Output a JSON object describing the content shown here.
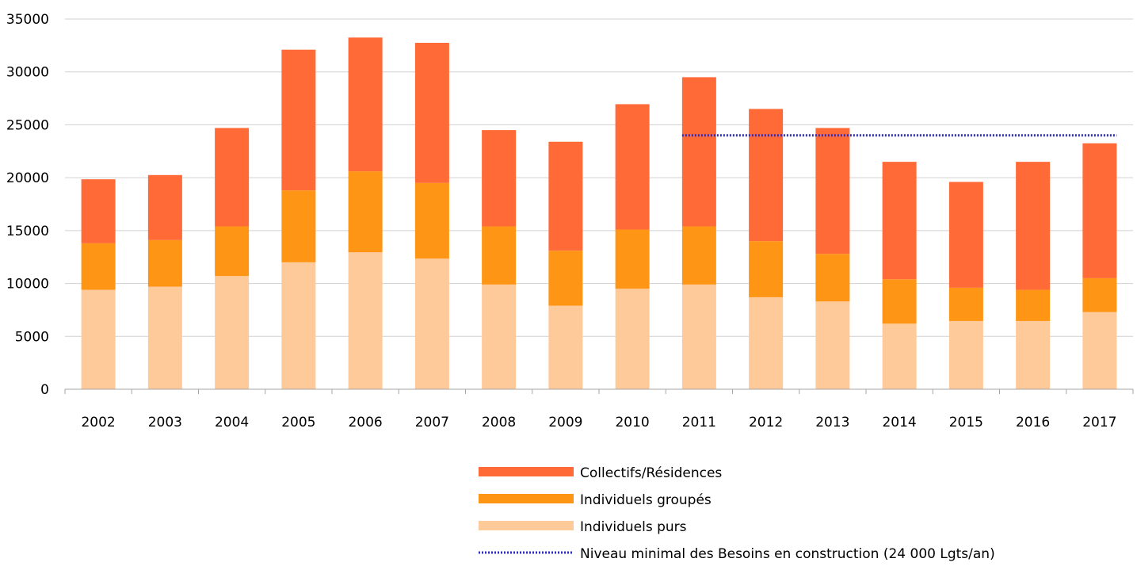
{
  "chart_data": {
    "type": "bar",
    "stacked": true,
    "categories": [
      "2002",
      "2003",
      "2004",
      "2005",
      "2006",
      "2007",
      "2008",
      "2009",
      "2010",
      "2011",
      "2012",
      "2013",
      "2014",
      "2015",
      "2016",
      "2017"
    ],
    "series": [
      {
        "name": "Individuels purs",
        "color": "#FFCA99",
        "values": [
          9400,
          9700,
          10700,
          12000,
          12950,
          12350,
          9900,
          7900,
          9500,
          9900,
          8700,
          8300,
          6200,
          6450,
          6450,
          7300
        ]
      },
      {
        "name": "Individuels groupés",
        "color": "#FF9515",
        "values": [
          4400,
          4400,
          4700,
          6800,
          7650,
          7150,
          5500,
          5200,
          5600,
          5500,
          5300,
          4500,
          4200,
          3150,
          2950,
          3200
        ]
      },
      {
        "name": "Collectifs/Résidences",
        "color": "#FF6A37",
        "values": [
          6050,
          6150,
          9300,
          13300,
          12650,
          13250,
          9100,
          10300,
          11850,
          14100,
          12500,
          11900,
          11100,
          10000,
          12100,
          12750
        ]
      }
    ],
    "reference_line": {
      "name": "Niveau minimal des Besoins en construction (24 000 Lgts/an)",
      "value": 24000,
      "from": "2011",
      "to": "2017",
      "color": "#2C2CC8",
      "style": "dotted"
    },
    "legend_order": [
      "Collectifs/Résidences",
      "Individuels groupés",
      "Individuels purs",
      "Niveau minimal des Besoins en construction (24 000 Lgts/an)"
    ],
    "legend_position": "bottom",
    "ylim": [
      0,
      35000
    ],
    "yticks": [
      0,
      5000,
      10000,
      15000,
      20000,
      25000,
      30000,
      35000
    ],
    "grid": true,
    "title": "",
    "xlabel": "",
    "ylabel": ""
  }
}
